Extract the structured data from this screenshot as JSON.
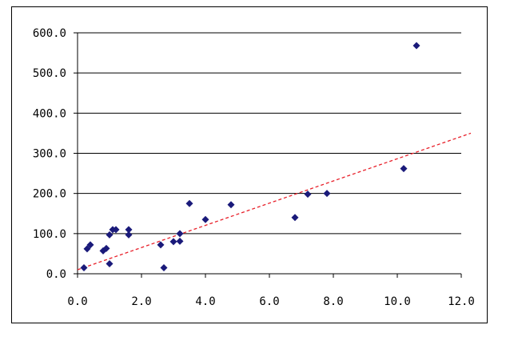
{
  "chart_data": {
    "type": "scatter",
    "title": "",
    "xlabel": "",
    "ylabel": "",
    "xlim": [
      0,
      12
    ],
    "ylim": [
      0,
      600
    ],
    "x_ticks": [
      "0.0",
      "2.0",
      "4.0",
      "6.0",
      "8.0",
      "10.0",
      "12.0"
    ],
    "y_ticks": [
      "0.0",
      "100.0",
      "200.0",
      "300.0",
      "400.0",
      "500.0",
      "600.0"
    ],
    "grid": "horizontal",
    "legend": "none",
    "marker": "diamond",
    "marker_color": "#1a1a7a",
    "trendline_color": "#e8202a",
    "points": [
      {
        "x": 0.2,
        "y": 15
      },
      {
        "x": 0.3,
        "y": 62
      },
      {
        "x": 0.4,
        "y": 72
      },
      {
        "x": 0.8,
        "y": 57
      },
      {
        "x": 0.9,
        "y": 63
      },
      {
        "x": 1.0,
        "y": 25
      },
      {
        "x": 1.0,
        "y": 97
      },
      {
        "x": 1.1,
        "y": 110
      },
      {
        "x": 1.2,
        "y": 110
      },
      {
        "x": 1.6,
        "y": 110
      },
      {
        "x": 1.6,
        "y": 97
      },
      {
        "x": 2.6,
        "y": 72
      },
      {
        "x": 2.7,
        "y": 15
      },
      {
        "x": 3.0,
        "y": 80
      },
      {
        "x": 3.2,
        "y": 81
      },
      {
        "x": 3.2,
        "y": 100
      },
      {
        "x": 3.5,
        "y": 175
      },
      {
        "x": 4.0,
        "y": 135
      },
      {
        "x": 4.8,
        "y": 172
      },
      {
        "x": 6.8,
        "y": 140
      },
      {
        "x": 7.2,
        "y": 198
      },
      {
        "x": 7.8,
        "y": 200
      },
      {
        "x": 10.2,
        "y": 262
      },
      {
        "x": 10.6,
        "y": 568
      }
    ],
    "trendline": {
      "x": [
        0,
        12.3
      ],
      "y": [
        10,
        350
      ]
    }
  }
}
